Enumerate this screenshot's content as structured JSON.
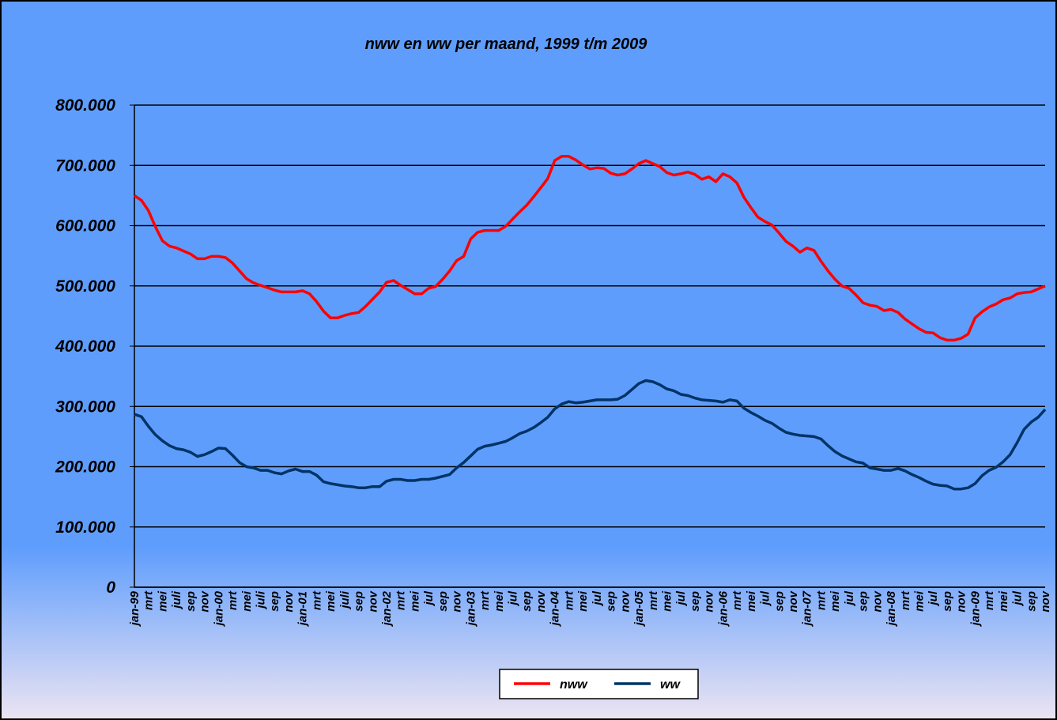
{
  "chart_data": {
    "type": "line",
    "title": "nww en ww per maand, 1999 t/m 2009",
    "categories": [
      "jan-99",
      null,
      "mrt",
      null,
      "mei",
      null,
      "juli",
      null,
      "sep",
      null,
      "nov",
      null,
      "jan-00",
      null,
      "mrt",
      null,
      "mei",
      null,
      "juli",
      null,
      "sep",
      null,
      "nov",
      null,
      "jan-01",
      null,
      "mrt",
      null,
      "mei",
      null,
      "juli",
      null,
      "sep",
      null,
      "nov",
      null,
      "jan-02",
      null,
      "mrt",
      null,
      "mei",
      null,
      "jul",
      null,
      "sep",
      null,
      "nov",
      null,
      "jan-03",
      null,
      "mrt",
      null,
      "mei",
      null,
      "jul",
      null,
      "sep",
      null,
      "nov",
      null,
      "jan-04",
      null,
      "mrt",
      null,
      "mei",
      null,
      "jul",
      null,
      "sep",
      null,
      "nov",
      null,
      "jan-05",
      null,
      "mrt",
      null,
      "mei",
      null,
      "jul",
      null,
      "sep",
      null,
      "nov",
      null,
      "jan-06",
      null,
      "mrt",
      null,
      "mei",
      null,
      "jul",
      null,
      "sep",
      null,
      "nov",
      null,
      "jan-07",
      null,
      "mrt",
      null,
      "mei",
      null,
      "jul",
      null,
      "sep",
      null,
      "nov",
      null,
      "jan-08",
      null,
      "mrt",
      null,
      "mei",
      null,
      "jul",
      null,
      "sep",
      null,
      "nov",
      null,
      "jan-09",
      null,
      "mrt",
      null,
      "mei",
      null,
      "jul",
      null,
      "sep",
      null,
      "nov"
    ],
    "series": [
      {
        "name": "nww",
        "color": "#ff0000",
        "values": [
          650000,
          642000,
          625000,
          598000,
          575000,
          566000,
          563000,
          558000,
          553000,
          545000,
          545000,
          549000,
          549000,
          547000,
          538000,
          525000,
          512000,
          505000,
          501000,
          497000,
          493000,
          490000,
          490000,
          490000,
          492000,
          487000,
          474000,
          458000,
          447000,
          447000,
          451000,
          454000,
          456000,
          466000,
          478000,
          490000,
          506000,
          509000,
          501000,
          494000,
          487000,
          487000,
          496000,
          499000,
          511000,
          525000,
          542000,
          549000,
          578000,
          589000,
          592000,
          592000,
          592000,
          599000,
          611000,
          623000,
          634000,
          648000,
          663000,
          678000,
          708000,
          715000,
          715000,
          709000,
          701000,
          694000,
          696000,
          695000,
          687000,
          684000,
          686000,
          694000,
          703000,
          708000,
          703000,
          698000,
          688000,
          684000,
          686000,
          689000,
          685000,
          677000,
          681000,
          673000,
          686000,
          681000,
          671000,
          647000,
          630000,
          614000,
          607000,
          601000,
          588000,
          574000,
          566000,
          556000,
          563000,
          559000,
          541000,
          525000,
          511000,
          500000,
          496000,
          485000,
          472000,
          468000,
          466000,
          459000,
          461000,
          456000,
          445000,
          437000,
          429000,
          423000,
          422000,
          414000,
          410000,
          410000,
          413000,
          420000,
          447000,
          457000,
          465000,
          470000,
          477000,
          480000,
          487000,
          489000,
          490000,
          495000,
          500000
        ]
      },
      {
        "name": "ww",
        "color": "#003366",
        "values": [
          287000,
          283000,
          267000,
          253000,
          243000,
          235000,
          230000,
          228000,
          224000,
          217000,
          220000,
          225000,
          231000,
          230000,
          219000,
          207000,
          200000,
          198000,
          194000,
          194000,
          190000,
          188000,
          193000,
          196000,
          192000,
          192000,
          186000,
          175000,
          172000,
          170000,
          168000,
          167000,
          165000,
          165000,
          167000,
          167000,
          176000,
          179000,
          179000,
          177000,
          177000,
          179000,
          179000,
          181000,
          184000,
          187000,
          198000,
          207000,
          218000,
          229000,
          234000,
          236000,
          239000,
          242000,
          248000,
          255000,
          259000,
          265000,
          273000,
          282000,
          296000,
          304000,
          308000,
          306000,
          307000,
          309000,
          311000,
          311000,
          311000,
          312000,
          318000,
          328000,
          338000,
          343000,
          341000,
          336000,
          329000,
          326000,
          320000,
          318000,
          314000,
          311000,
          310000,
          309000,
          307000,
          311000,
          309000,
          297000,
          290000,
          284000,
          277000,
          272000,
          264000,
          257000,
          254000,
          252000,
          251000,
          250000,
          246000,
          235000,
          225000,
          218000,
          213000,
          208000,
          206000,
          198000,
          196000,
          194000,
          194000,
          197000,
          193000,
          187000,
          182000,
          176000,
          171000,
          169000,
          168000,
          163000,
          163000,
          165000,
          172000,
          185000,
          194000,
          199000,
          208000,
          220000,
          240000,
          262000,
          274000,
          282000,
          295000
        ]
      }
    ],
    "ylim": [
      0,
      800000
    ],
    "yticks": [
      0,
      {
        "value": 100000,
        "label": "100.000"
      },
      {
        "value": 200000,
        "label": "200.000"
      },
      {
        "value": 300000,
        "label": "300.000"
      },
      {
        "value": 400000,
        "label": "400.000"
      },
      {
        "value": 500000,
        "label": "500.000"
      },
      {
        "value": 600000,
        "label": "600.000"
      },
      {
        "value": 700000,
        "label": "700.000"
      },
      {
        "value": 800000,
        "label": "800.000"
      }
    ],
    "grid": true,
    "legend": "bottom"
  }
}
